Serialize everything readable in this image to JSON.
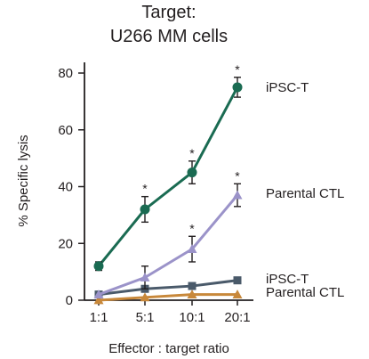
{
  "chart_data": {
    "type": "line",
    "title": "Target:",
    "subtitle": "U266 MM cells",
    "xlabel": "Effector : target ratio",
    "ylabel": "% Specific lysis",
    "categories": [
      "1:1",
      "5:1",
      "10:1",
      "20:1"
    ],
    "ylim": [
      0,
      85
    ],
    "yticks": [
      0,
      20,
      40,
      60,
      80
    ],
    "grid": false,
    "legend": "series labels at right end of lines",
    "series": [
      {
        "name": "iPSC-T",
        "color": "#1a6b52",
        "marker": "circle",
        "values": [
          12,
          32,
          45,
          75
        ],
        "errors": [
          1.5,
          4.5,
          4,
          3.5
        ],
        "significant": [
          false,
          true,
          true,
          true
        ]
      },
      {
        "name": "Parental CTL",
        "color": "#9b93c9",
        "marker": "triangle",
        "values": [
          2,
          8,
          18,
          37
        ],
        "errors": [
          0.5,
          4,
          4.5,
          4
        ],
        "significant": [
          false,
          false,
          true,
          true
        ]
      },
      {
        "name": "iPSC-T",
        "color": "#4a5a6a",
        "marker": "square",
        "values": [
          2,
          4,
          5,
          7
        ],
        "errors": [
          0.5,
          1,
          0.8,
          0.8
        ],
        "significant": [
          false,
          false,
          false,
          false
        ]
      },
      {
        "name": "Parental CTL",
        "color": "#c8883a",
        "marker": "triangle",
        "values": [
          0,
          1,
          2,
          2
        ],
        "errors": [
          0.3,
          0.3,
          0.3,
          0.3
        ],
        "significant": [
          false,
          false,
          false,
          false
        ]
      }
    ],
    "annotation_symbol": "*"
  }
}
